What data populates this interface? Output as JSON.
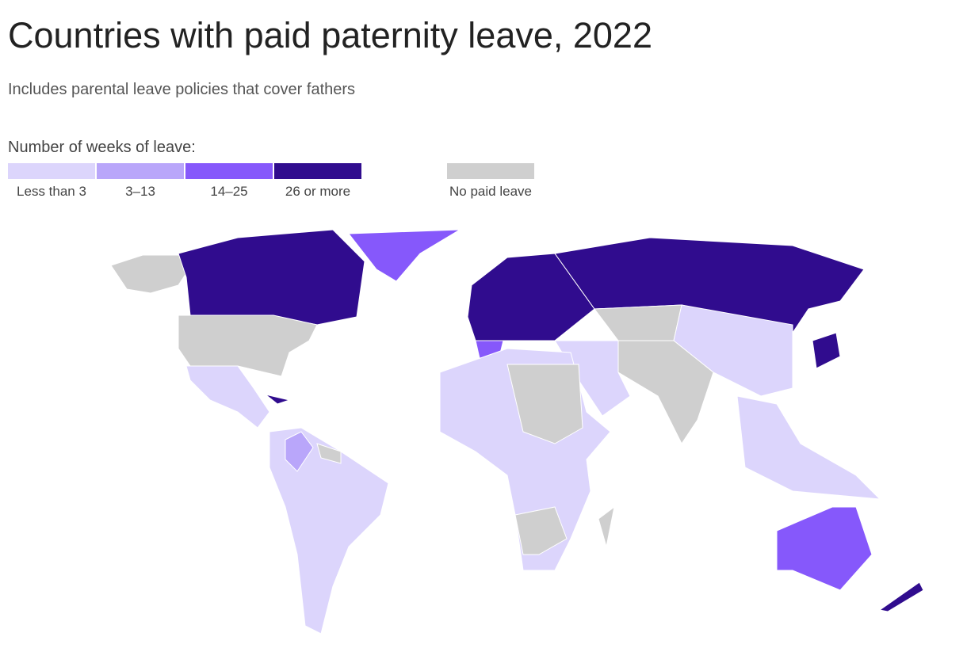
{
  "header": {
    "title": "Countries with paid paternity leave, 2022",
    "subtitle": "Includes parental leave policies that cover fathers"
  },
  "legend": {
    "title": "Number of weeks of leave:",
    "items": [
      {
        "label": "Less than 3",
        "color": "#dcd5fc"
      },
      {
        "label": "3–13",
        "color": "#b9a6fa"
      },
      {
        "label": "14–25",
        "color": "#8658fb"
      },
      {
        "label": "26 or more",
        "color": "#300c8e"
      },
      {
        "label": "No paid leave",
        "color": "#cfcfcf"
      }
    ]
  }
}
